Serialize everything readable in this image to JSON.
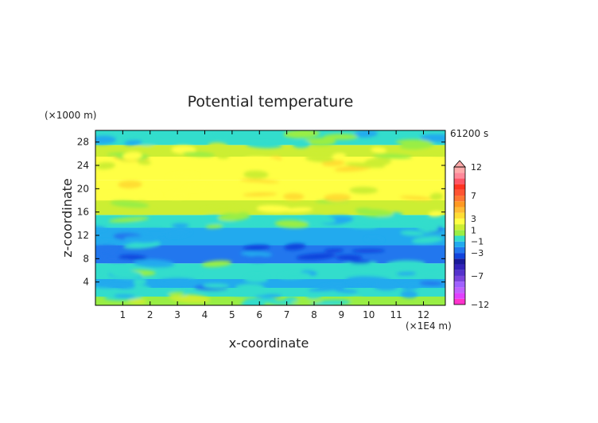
{
  "chart_data": {
    "type": "heatmap",
    "title": "Potential temperature",
    "xlabel": "x-coordinate",
    "ylabel": "z-coordinate",
    "x_unit": "(×1E4 m)",
    "y_unit": "(×1000 m)",
    "time_label": "61200 s",
    "xlim": [
      0,
      12.8
    ],
    "ylim": [
      0,
      30
    ],
    "x_ticks": [
      1,
      2,
      3,
      4,
      5,
      6,
      7,
      8,
      9,
      10,
      11,
      12
    ],
    "y_ticks": [
      4,
      8,
      12,
      16,
      20,
      24,
      28
    ],
    "colorbar": {
      "levels": [
        -12,
        -11,
        -10,
        -9,
        -8,
        -7,
        -6,
        -5,
        -4,
        -3,
        -2,
        -1,
        0,
        1,
        2,
        3,
        4,
        5,
        6,
        7,
        8,
        9,
        10,
        11,
        12
      ],
      "colors": [
        "#ff33cc",
        "#e040ff",
        "#c060ff",
        "#a060ff",
        "#7a44dd",
        "#5533cc",
        "#3322bb",
        "#1a1a99",
        "#1144dd",
        "#2277ee",
        "#22aaee",
        "#33ddcc",
        "#99ee44",
        "#ccee33",
        "#ffff44",
        "#ffdd33",
        "#ffbb33",
        "#ff9922",
        "#ff7733",
        "#ff5533",
        "#ff3322",
        "#ff5566",
        "#ff8899",
        "#ffaaaa"
      ],
      "tick_labels": [
        "12",
        "7",
        "3",
        "1",
        "−1",
        "−3",
        "−7",
        "−12"
      ]
    },
    "bands": [
      {
        "z": [
          0,
          1.5
        ],
        "value": 0.3
      },
      {
        "z": [
          1.5,
          3
        ],
        "value": -0.6
      },
      {
        "z": [
          3,
          4.5
        ],
        "value": -1.2
      },
      {
        "z": [
          4.5,
          7.2
        ],
        "value": -0.4
      },
      {
        "z": [
          7.2,
          10.3
        ],
        "value": -2.8
      },
      {
        "z": [
          10.3,
          13.3
        ],
        "value": -1.4
      },
      {
        "z": [
          13.3,
          15.5
        ],
        "value": -0.2
      },
      {
        "z": [
          15.5,
          18
        ],
        "value": 1.4
      },
      {
        "z": [
          18,
          21.5
        ],
        "value": 2.6
      },
      {
        "z": [
          21.5,
          25.5
        ],
        "value": 2.2
      },
      {
        "z": [
          25.5,
          27.5
        ],
        "value": 1.3
      },
      {
        "z": [
          27.5,
          30
        ],
        "value": -0.2
      }
    ]
  }
}
